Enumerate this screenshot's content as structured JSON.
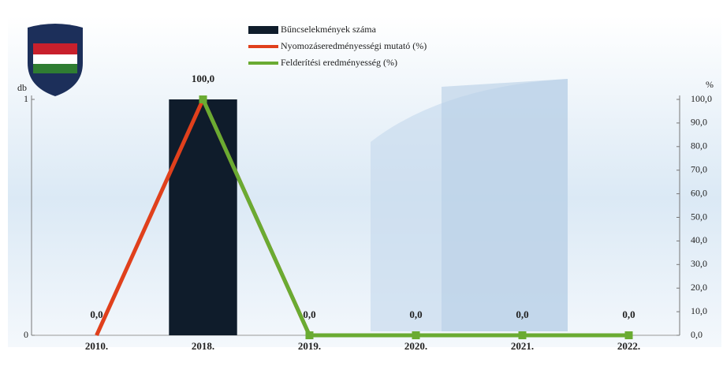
{
  "chart_data": {
    "type": "bar-line",
    "categories": [
      "2010.",
      "2018.",
      "2019.",
      "2020.",
      "2021.",
      "2022."
    ],
    "ylabel": "db",
    "y2label": "%",
    "ylim": [
      0,
      1
    ],
    "yticks": [
      0,
      1
    ],
    "y2lim": [
      0,
      100
    ],
    "y2ticks": [
      {
        "value": 0,
        "label": "0,0"
      },
      {
        "value": 10,
        "label": "10,0"
      },
      {
        "value": 20,
        "label": "20,0"
      },
      {
        "value": 30,
        "label": "30,0"
      },
      {
        "value": 40,
        "label": "40,0"
      },
      {
        "value": 50,
        "label": "50,0"
      },
      {
        "value": 60,
        "label": "60,0"
      },
      {
        "value": 70,
        "label": "70,0"
      },
      {
        "value": 80,
        "label": "80,0"
      },
      {
        "value": 90,
        "label": "90,0"
      },
      {
        "value": 100,
        "label": "100,0"
      }
    ],
    "series": [
      {
        "name": "Bűncselekmények száma",
        "kind": "bar",
        "color": "#0f1c2b",
        "values": [
          0,
          1,
          0,
          0,
          0,
          0
        ]
      },
      {
        "name": "Nyomozáseredményességi mutató (%)",
        "kind": "line",
        "axis": "y2",
        "color": "#e0401c",
        "values": [
          0,
          100,
          0,
          0,
          0,
          0
        ],
        "value_labels": [
          "0,0",
          "100,0",
          "0,0",
          "0,0",
          "0,0",
          "0,0"
        ]
      },
      {
        "name": "Felderítési eredményesség (%)",
        "kind": "line",
        "axis": "y2",
        "color": "#6aab32",
        "values": [
          null,
          100,
          0,
          0,
          0,
          0
        ]
      }
    ]
  }
}
